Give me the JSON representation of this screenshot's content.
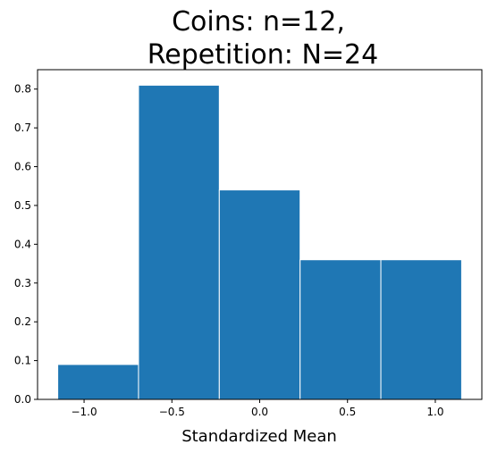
{
  "chart_data": {
    "type": "bar",
    "title_lines": [
      "Coins: n=12,",
      "Repetition: N=24"
    ],
    "xlabel": "Standardized Mean",
    "ylabel": "",
    "bins": [
      {
        "x0": -1.15,
        "x1": -0.69,
        "value": 0.09
      },
      {
        "x0": -0.69,
        "x1": -0.23,
        "value": 0.81
      },
      {
        "x0": -0.23,
        "x1": 0.23,
        "value": 0.54
      },
      {
        "x0": 0.23,
        "x1": 0.69,
        "value": 0.36
      },
      {
        "x0": 0.69,
        "x1": 1.15,
        "value": 0.36
      }
    ],
    "xlim": [
      -1.265,
      1.265
    ],
    "ylim": [
      0,
      0.85
    ],
    "xticks": [
      -1.0,
      -0.5,
      0.0,
      0.5,
      1.0
    ],
    "xtick_labels": [
      "−1.0",
      "−0.5",
      "0.0",
      "0.5",
      "1.0"
    ],
    "yticks": [
      0.0,
      0.1,
      0.2,
      0.3,
      0.4,
      0.5,
      0.6,
      0.7,
      0.8
    ],
    "ytick_labels": [
      "0.0",
      "0.1",
      "0.2",
      "0.3",
      "0.4",
      "0.5",
      "0.6",
      "0.7",
      "0.8"
    ],
    "bar_color": "#1f77b4",
    "edge_color": "#ffffff",
    "grid": false
  }
}
